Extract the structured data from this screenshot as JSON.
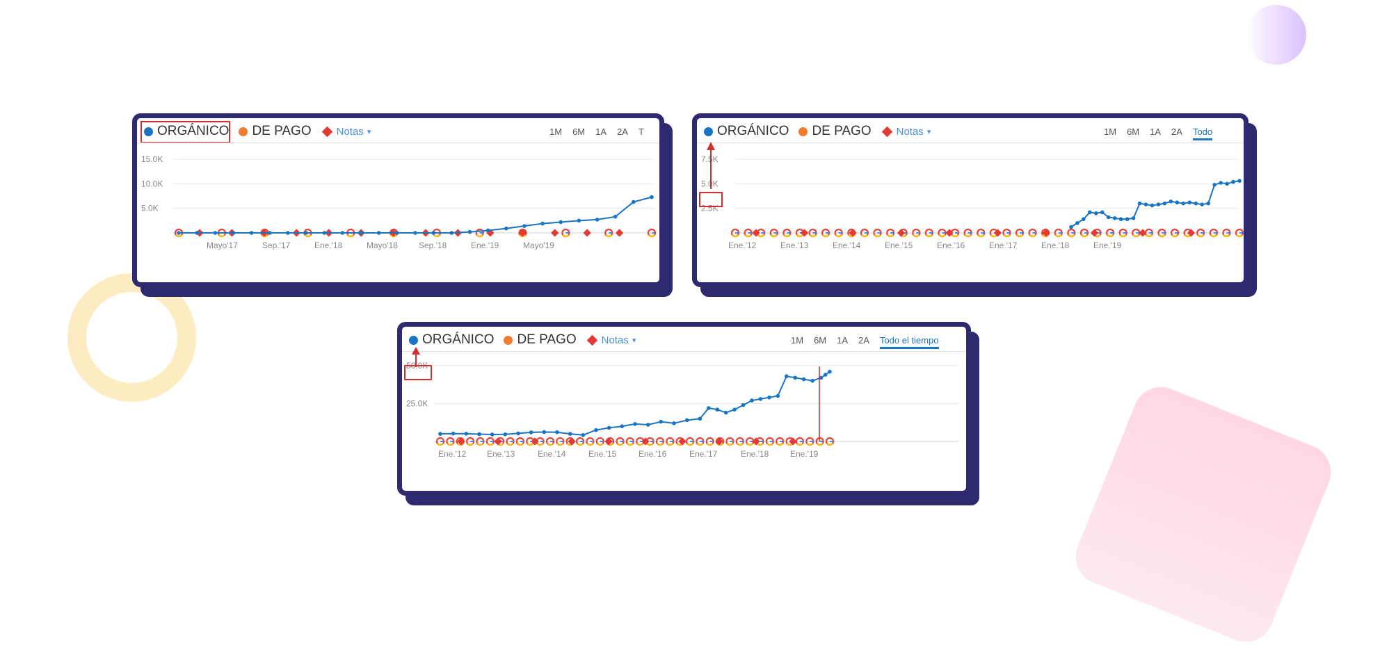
{
  "colors": {
    "organic": "#1a74c4",
    "paid": "#f07c30",
    "notes": "#e53935",
    "card_border": "#2e2a6f",
    "highlight": "#d32f2f"
  },
  "legend": {
    "organic_label": "ORGÁNICO",
    "paid_label": "DE PAGO",
    "notes_label": "Notas",
    "caret": "▾"
  },
  "chart_data": [
    {
      "type": "line",
      "y_ticks": [
        "15.0K",
        "10.0K",
        "5.0K"
      ],
      "x_ticks": [
        "Mayo'17",
        "Sep.'17",
        "Ene.'18",
        "Mayo'18",
        "Sep.'18",
        "Ene.'19",
        "Mayo'19"
      ],
      "ylim": [
        0,
        17000
      ],
      "periods": [
        "1M",
        "6M",
        "1A",
        "2A",
        "T"
      ],
      "active_period": "",
      "series": [
        {
          "name": "ORGÁNICO",
          "x": [
            0,
            1,
            2,
            3,
            4,
            5,
            6,
            7,
            8,
            9,
            10,
            11,
            12,
            13,
            14,
            15,
            16,
            17,
            18,
            19,
            20,
            21,
            22,
            23,
            24,
            25,
            26
          ],
          "values": [
            0,
            0,
            0,
            0,
            0,
            0,
            0,
            0,
            0,
            0,
            0,
            0,
            0,
            0,
            0,
            0,
            200,
            500,
            900,
            1400,
            1900,
            2200,
            2500,
            2700,
            3300,
            6300,
            7300
          ]
        }
      ],
      "google_updates": 12,
      "notes_markers": 14
    },
    {
      "type": "line",
      "y_ticks": [
        "7.5K",
        "5.0K",
        "2.5K"
      ],
      "x_ticks": [
        "Ene.'12",
        "Ene.'13",
        "Ene.'14",
        "Ene.'15",
        "Ene.'16",
        "Ene.'17",
        "Ene.'18",
        "Ene.'19"
      ],
      "ylim": [
        0,
        8500
      ],
      "periods": [
        "1M",
        "6M",
        "1A",
        "2A",
        "Todo"
      ],
      "active_period": "Todo",
      "series": [
        {
          "name": "ORGÁNICO",
          "x": [
            60,
            61,
            62,
            63,
            64,
            65,
            66,
            67,
            68,
            69,
            70,
            71,
            72,
            73,
            74,
            75,
            76,
            77,
            78,
            79,
            80,
            81,
            82,
            83,
            84,
            85,
            86,
            87
          ],
          "values": [
            600,
            1000,
            1400,
            2100,
            2000,
            2100,
            1600,
            1500,
            1400,
            1400,
            1500,
            3000,
            2900,
            2800,
            2900,
            3000,
            3200,
            3100,
            3000,
            3100,
            3000,
            2900,
            3000,
            4900,
            5100,
            5000,
            5200,
            5300
          ]
        }
      ],
      "google_updates": 40,
      "notes_markers": 10
    },
    {
      "type": "line",
      "y_ticks": [
        "50.0K",
        "25.0K"
      ],
      "x_ticks": [
        "Ene.'12",
        "Ene.'13",
        "Ene.'14",
        "Ene.'15",
        "Ene.'16",
        "Ene.'17",
        "Ene.'18",
        "Ene.'19"
      ],
      "ylim": [
        0,
        55000
      ],
      "periods": [
        "1M",
        "6M",
        "1A",
        "2A",
        "Todo el tiempo"
      ],
      "active_period": "Todo el tiempo",
      "series": [
        {
          "name": "ORGÁNICO",
          "x": [
            0,
            3,
            6,
            9,
            12,
            15,
            18,
            21,
            24,
            27,
            30,
            33,
            36,
            39,
            42,
            45,
            48,
            51,
            54,
            57,
            60,
            62,
            64,
            66,
            68,
            70,
            72,
            74,
            76,
            78,
            80,
            82,
            84,
            86,
            88,
            89,
            90
          ],
          "values": [
            5000,
            5200,
            5100,
            4800,
            4600,
            4700,
            5300,
            6000,
            6200,
            6100,
            5000,
            4200,
            7500,
            9000,
            10000,
            11500,
            11000,
            13000,
            12000,
            14000,
            15000,
            22000,
            21000,
            19000,
            21000,
            24000,
            27000,
            28000,
            29000,
            30000,
            43000,
            42000,
            41000,
            40000,
            42000,
            44000,
            46000
          ]
        }
      ],
      "google_updates": 40,
      "notes_markers": 10
    }
  ]
}
